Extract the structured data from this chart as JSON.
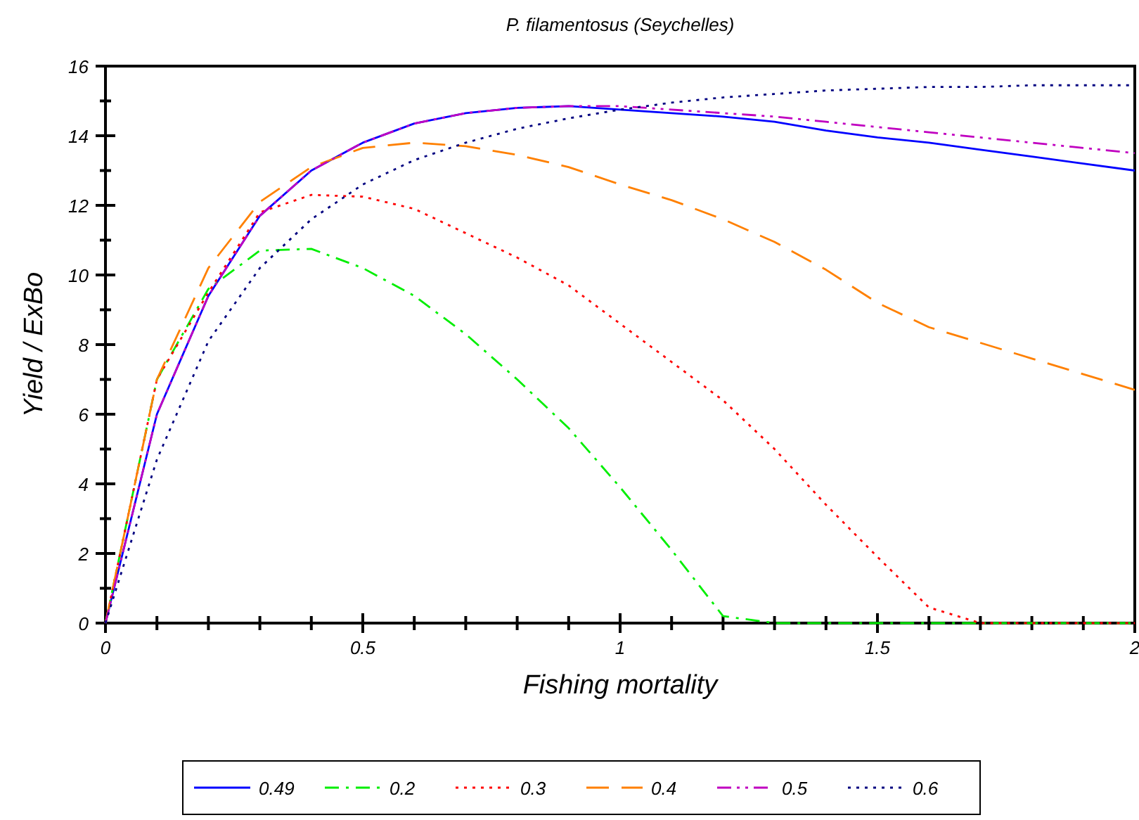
{
  "chart_data": {
    "type": "line",
    "title": "P. filamentosus (Seychelles)",
    "xlabel": "Fishing mortality",
    "ylabel": "Yield / ExBo",
    "x": [
      0,
      0.1,
      0.2,
      0.3,
      0.4,
      0.5,
      0.6,
      0.7,
      0.8,
      0.9,
      1,
      1.1,
      1.2,
      1.3,
      1.4,
      1.5,
      1.6,
      1.7,
      1.8,
      1.9,
      2
    ],
    "series": [
      {
        "name": "0.49",
        "color": "#0000ff",
        "line_style": "solid",
        "values": [
          0,
          6.0,
          9.4,
          11.7,
          13.0,
          13.8,
          14.35,
          14.65,
          14.8,
          14.85,
          14.75,
          14.65,
          14.55,
          14.4,
          14.15,
          13.95,
          13.8,
          13.6,
          13.4,
          13.2,
          13.0
        ]
      },
      {
        "name": "0.2",
        "color": "#00ee00",
        "line_style": "dashdot",
        "values": [
          0,
          7.0,
          9.6,
          10.7,
          10.75,
          10.2,
          9.4,
          8.3,
          7.0,
          5.6,
          3.9,
          2.1,
          0.2,
          0,
          0,
          0,
          0,
          0,
          0,
          0,
          0
        ]
      },
      {
        "name": "0.3",
        "color": "#ff0000",
        "line_style": "dotted",
        "values": [
          0,
          7.0,
          9.5,
          11.8,
          12.3,
          12.25,
          11.9,
          11.2,
          10.5,
          9.7,
          8.6,
          7.5,
          6.4,
          5.0,
          3.4,
          1.9,
          0.45,
          0,
          0,
          0,
          0
        ]
      },
      {
        "name": "0.4",
        "color": "#ff8000",
        "line_style": "dashed",
        "values": [
          0,
          7.0,
          10.2,
          12.1,
          13.1,
          13.65,
          13.8,
          13.7,
          13.45,
          13.1,
          12.6,
          12.15,
          11.6,
          10.95,
          10.15,
          9.2,
          8.5,
          8.05,
          7.6,
          7.15,
          6.7
        ]
      },
      {
        "name": "0.5",
        "color": "#c000c0",
        "line_style": "dashdotdot",
        "values": [
          0,
          6.0,
          9.4,
          11.7,
          13.0,
          13.8,
          14.35,
          14.65,
          14.8,
          14.85,
          14.85,
          14.75,
          14.65,
          14.55,
          14.4,
          14.25,
          14.1,
          13.95,
          13.8,
          13.65,
          13.5
        ]
      },
      {
        "name": "0.6",
        "color": "#000080",
        "line_style": "dotted",
        "values": [
          0,
          4.7,
          8.1,
          10.2,
          11.6,
          12.6,
          13.3,
          13.8,
          14.2,
          14.5,
          14.75,
          14.95,
          15.1,
          15.2,
          15.3,
          15.35,
          15.4,
          15.4,
          15.45,
          15.45,
          15.45
        ]
      }
    ],
    "xlim": [
      0,
      2
    ],
    "xticks": [
      0,
      {
        "value": 0.1,
        "label": null
      },
      {
        "value": 0.2,
        "label": null
      },
      {
        "value": 0.3,
        "label": null
      },
      {
        "value": 0.4,
        "label": null
      },
      0.5,
      {
        "value": 0.6,
        "label": null
      },
      {
        "value": 0.7,
        "label": null
      },
      {
        "value": 0.8,
        "label": null
      },
      {
        "value": 0.9,
        "label": null
      },
      1,
      {
        "value": 1.1,
        "label": null
      },
      {
        "value": 1.2,
        "label": null
      },
      {
        "value": 1.3,
        "label": null
      },
      {
        "value": 1.4,
        "label": null
      },
      1.5,
      {
        "value": 1.6,
        "label": null
      },
      {
        "value": 1.7,
        "label": null
      },
      {
        "value": 1.8,
        "label": null
      },
      {
        "value": 1.9,
        "label": null
      },
      2
    ],
    "ylim": [
      0,
      16
    ],
    "yticks": [
      0,
      {
        "value": 1,
        "label": null
      },
      2,
      {
        "value": 3,
        "label": null
      },
      4,
      {
        "value": 5,
        "label": null
      },
      6,
      {
        "value": 7,
        "label": null
      },
      8,
      {
        "value": 9,
        "label": null
      },
      10,
      {
        "value": 11,
        "label": null
      },
      12,
      {
        "value": 13,
        "label": null
      },
      14,
      {
        "value": 15,
        "label": null
      },
      16
    ],
    "grid": false,
    "legend": "bottom"
  }
}
